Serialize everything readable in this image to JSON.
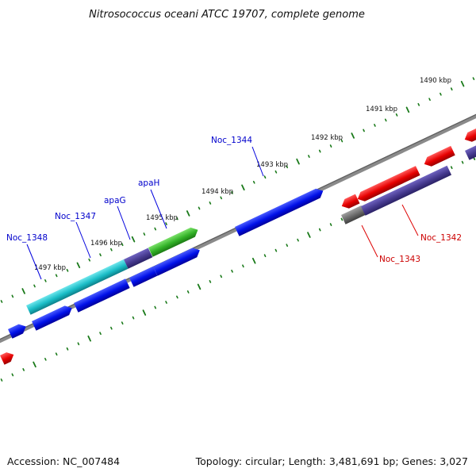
{
  "title": "Nitrosococcus oceani ATCC 19707, complete genome",
  "footer": {
    "accession": "Accession: NC_007484",
    "topology": "Topology: circular; Length: 3,481,691 bp; Genes: 3,027"
  },
  "ruler_labels": [
    "1490 kbp",
    "1491 kbp",
    "1492 kbp",
    "1493 kbp",
    "1494 kbp",
    "1495 kbp",
    "1496 kbp",
    "1497 kbp"
  ],
  "gene_labels": [
    {
      "name": "Noc_1348",
      "color": "#0000cc"
    },
    {
      "name": "Noc_1347",
      "color": "#0000cc"
    },
    {
      "name": "apaG",
      "color": "#0000cc"
    },
    {
      "name": "apaH",
      "color": "#0000cc"
    },
    {
      "name": "Noc_1344",
      "color": "#0000cc"
    },
    {
      "name": "Noc_1343",
      "color": "#cc0000"
    },
    {
      "name": "Noc_1342",
      "color": "#cc0000"
    }
  ],
  "colors": {
    "backbone": "#7a7a7a",
    "cds_forward": "#0000ee",
    "cds_reverse": "#ee0000",
    "orf_dark": "#4b3f96",
    "cyan_feature": "#19c0c8",
    "green_feature": "#35b52a",
    "gray_feature": "#6e6e6e",
    "tick": "#1a7a1a"
  }
}
